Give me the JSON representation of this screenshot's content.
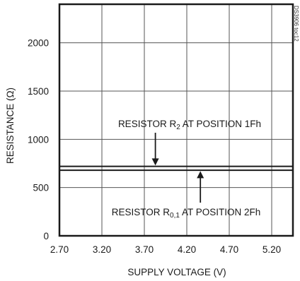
{
  "colors": {
    "line": "#1a1a1a",
    "grid": "#555555",
    "background": "#ffffff"
  },
  "figure_code": "DS3906 toc12",
  "chart_data": {
    "type": "line",
    "xlabel": "SUPPLY VOLTAGE (V)",
    "ylabel": "RESISTANCE (Ω)",
    "xlim": [
      2.7,
      5.45
    ],
    "ylim": [
      0,
      2400
    ],
    "x_ticks": [
      2.7,
      3.2,
      3.7,
      4.2,
      4.7,
      5.2
    ],
    "x_tick_labels": [
      "2.70",
      "3.20",
      "3.70",
      "4.20",
      "4.70",
      "5.20"
    ],
    "y_ticks": [
      0,
      500,
      1000,
      1500,
      2000
    ],
    "y_tick_labels": [
      "0",
      "500",
      "1000",
      "1500",
      "2000"
    ],
    "grid": true,
    "series": [
      {
        "name": "RESISTOR R2 AT POSITION 1Fh",
        "x": [
          2.7,
          3.2,
          3.7,
          4.2,
          4.7,
          5.2,
          5.45
        ],
        "y": [
          720,
          720,
          720,
          720,
          720,
          720,
          720
        ]
      },
      {
        "name": "RESISTOR R0,1 AT POSITION 2Fh",
        "x": [
          2.7,
          3.2,
          3.7,
          4.2,
          4.7,
          5.2,
          5.45
        ],
        "y": [
          680,
          680,
          680,
          680,
          680,
          680,
          680
        ]
      }
    ],
    "annotations": [
      {
        "main": "RESISTOR R",
        "sub": "2",
        "tail": " AT POSITION 1Fh",
        "arrow_x": 3.83,
        "arrow_y": 722
      },
      {
        "main": "RESISTOR R",
        "sub": "0,1",
        "tail": " AT POSITION 2Fh",
        "arrow_x": 4.36,
        "arrow_y": 678
      }
    ]
  }
}
